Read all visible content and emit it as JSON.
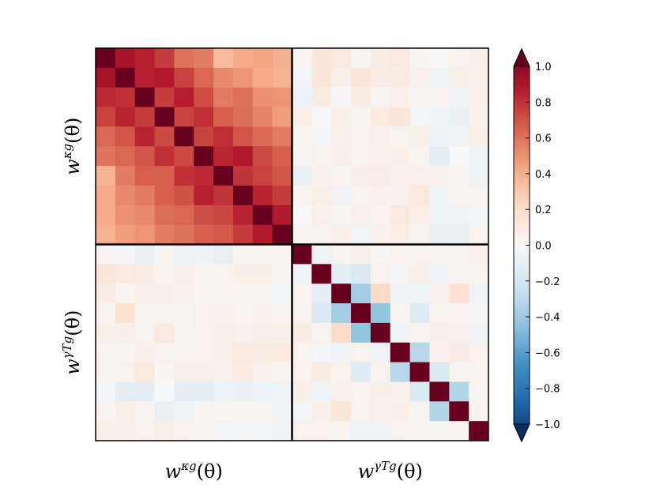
{
  "chart_data": {
    "type": "heatmap",
    "title": "",
    "rows": 20,
    "cols": 20,
    "blocks": [
      {
        "name": "kappa_g",
        "label_base": "w",
        "label_sup": "κg",
        "label_tail": "(θ)"
      },
      {
        "name": "gammaT_g",
        "label_base": "w",
        "label_sup": "γTg",
        "label_tail": "(θ)"
      }
    ],
    "block_size": 10,
    "vmin": -1.0,
    "vmax": 1.0,
    "colormap": "RdBu_r",
    "colors": [
      "#053061",
      "#2166ac",
      "#4393c3",
      "#92c5de",
      "#d1e5f0",
      "#f7f7f7",
      "#fddbc7",
      "#f4a582",
      "#d6604d",
      "#b2182b",
      "#67001f"
    ],
    "colorbar": {
      "ticks": [
        1.0,
        0.8,
        0.6,
        0.4,
        0.2,
        0.0,
        -0.2,
        -0.4,
        -0.6,
        -0.8,
        -1.0
      ],
      "tick_labels": [
        "1.0",
        "0.8",
        "0.6",
        "0.4",
        "0.2",
        "0.0",
        "−0.2",
        "−0.4",
        "−0.6",
        "−0.8",
        "−1.0"
      ],
      "extend": "both"
    },
    "values": [
      [
        1.0,
        0.83,
        0.78,
        0.7,
        0.55,
        0.52,
        0.32,
        0.38,
        0.4,
        0.36,
        0.03,
        0.12,
        0.1,
        0.03,
        0.08,
        0.1,
        0.02,
        0.0,
        0.03,
        0.06
      ],
      [
        0.83,
        1.0,
        0.78,
        0.8,
        0.68,
        0.58,
        0.48,
        0.44,
        0.38,
        0.35,
        -0.03,
        0.12,
        0.06,
        0.12,
        0.08,
        0.08,
        0.05,
        -0.05,
        0.06,
        0.05
      ],
      [
        0.75,
        0.73,
        1.0,
        0.7,
        0.79,
        0.65,
        0.52,
        0.55,
        0.46,
        0.45,
        -0.06,
        0.08,
        -0.02,
        0.08,
        0.02,
        0.05,
        0.03,
        0.04,
        -0.04,
        0.05
      ],
      [
        0.68,
        0.77,
        0.7,
        1.0,
        0.68,
        0.74,
        0.6,
        0.56,
        0.5,
        0.42,
        0.06,
        0.0,
        0.06,
        0.02,
        0.1,
        0.12,
        -0.03,
        -0.04,
        -0.08,
        0.05
      ],
      [
        0.58,
        0.63,
        0.77,
        0.66,
        1.0,
        0.68,
        0.74,
        0.63,
        0.57,
        0.52,
        0.03,
        -0.02,
        0.05,
        0.03,
        0.05,
        0.03,
        0.06,
        -0.06,
        -0.04,
        0.06
      ],
      [
        0.54,
        0.58,
        0.63,
        0.73,
        0.66,
        1.0,
        0.76,
        0.8,
        0.66,
        0.6,
        0.02,
        0.04,
        0.06,
        0.04,
        0.05,
        0.06,
        0.03,
        -0.1,
        0.0,
        -0.04
      ],
      [
        0.35,
        0.52,
        0.6,
        0.6,
        0.73,
        0.75,
        1.0,
        0.72,
        0.68,
        0.63,
        -0.08,
        0.05,
        0.03,
        0.06,
        0.07,
        0.05,
        0.05,
        0.05,
        0.02,
        -0.05
      ],
      [
        0.38,
        0.48,
        0.52,
        0.6,
        0.64,
        0.78,
        0.72,
        1.0,
        0.77,
        0.7,
        0.03,
        0.06,
        -0.04,
        0.04,
        0.05,
        0.05,
        0.1,
        -0.04,
        0.02,
        0.03
      ],
      [
        0.38,
        0.46,
        0.48,
        0.56,
        0.58,
        0.65,
        0.67,
        0.77,
        1.0,
        0.8,
        0.0,
        0.05,
        0.02,
        0.05,
        0.03,
        0.1,
        0.07,
        -0.05,
        -0.04,
        -0.03
      ],
      [
        0.35,
        0.42,
        0.45,
        0.52,
        0.55,
        0.6,
        0.62,
        0.7,
        0.8,
        1.0,
        0.03,
        0.03,
        0.06,
        -0.03,
        0.05,
        0.07,
        0.03,
        -0.08,
        -0.08,
        0.03
      ],
      [
        0.03,
        -0.02,
        -0.08,
        0.02,
        -0.06,
        -0.06,
        -0.08,
        0.02,
        0.02,
        0.02,
        1.0,
        -0.05,
        0.03,
        0.06,
        0.02,
        0.04,
        0.04,
        0.03,
        0.04,
        0.05
      ],
      [
        0.12,
        0.1,
        0.08,
        0.03,
        0.06,
        0.04,
        0.04,
        0.06,
        0.06,
        0.03,
        -0.05,
        1.0,
        -0.1,
        -0.15,
        0.04,
        -0.02,
        0.06,
        -0.05,
        0.03,
        0.04
      ],
      [
        0.08,
        0.02,
        0.06,
        0.06,
        0.05,
        0.03,
        0.03,
        0.02,
        0.02,
        -0.02,
        0.03,
        -0.1,
        1.0,
        -0.35,
        0.2,
        -0.04,
        -0.05,
        0.05,
        0.15,
        -0.04
      ],
      [
        0.03,
        0.15,
        0.03,
        0.03,
        0.02,
        0.04,
        0.05,
        0.04,
        0.05,
        0.03,
        0.03,
        -0.15,
        -0.35,
        1.0,
        -0.4,
        0.03,
        -0.12,
        0.04,
        0.03,
        -0.02
      ],
      [
        0.06,
        0.06,
        0.04,
        0.1,
        0.03,
        0.04,
        0.06,
        0.05,
        0.06,
        0.06,
        0.08,
        0.04,
        0.2,
        -0.4,
        1.0,
        -0.04,
        0.04,
        0.06,
        0.05,
        -0.04
      ],
      [
        0.03,
        0.02,
        0.06,
        0.04,
        0.03,
        0.04,
        0.06,
        0.1,
        0.08,
        0.1,
        0.04,
        -0.02,
        -0.04,
        0.04,
        -0.04,
        1.0,
        -0.28,
        0.05,
        0.08,
        0.04
      ],
      [
        0.03,
        0.04,
        0.1,
        0.02,
        0.06,
        0.06,
        0.05,
        0.08,
        0.05,
        0.03,
        0.04,
        0.08,
        0.04,
        -0.12,
        0.04,
        -0.28,
        1.0,
        -0.15,
        0.04,
        0.03
      ],
      [
        -0.02,
        -0.1,
        -0.1,
        0.0,
        -0.1,
        -0.1,
        -0.06,
        -0.07,
        -0.06,
        -0.04,
        0.06,
        -0.05,
        0.05,
        0.04,
        0.06,
        0.05,
        -0.15,
        1.0,
        -0.3,
        0.02
      ],
      [
        0.03,
        0.06,
        0.03,
        -0.08,
        -0.04,
        0.02,
        0.02,
        0.02,
        0.03,
        -0.05,
        -0.02,
        0.06,
        0.12,
        0.03,
        0.05,
        0.06,
        0.03,
        -0.3,
        1.0,
        0.03
      ],
      [
        0.06,
        0.06,
        0.04,
        0.06,
        0.04,
        0.03,
        -0.03,
        -0.02,
        -0.03,
        -0.04,
        0.04,
        0.04,
        0.03,
        -0.04,
        -0.04,
        0.04,
        0.03,
        0.02,
        0.03,
        1.0
      ]
    ]
  }
}
